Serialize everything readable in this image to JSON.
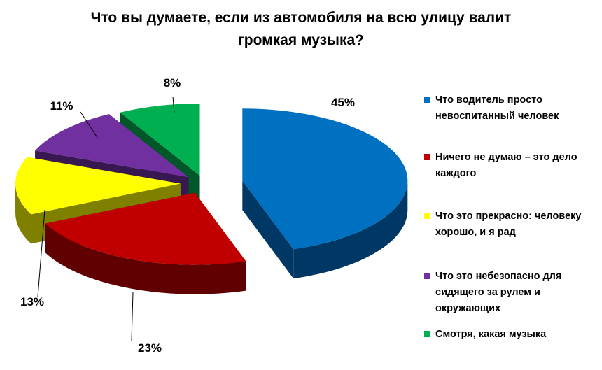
{
  "chart_data": {
    "type": "pie",
    "title": "Что вы думаете, если из автомобиля на всю улицу валит громкая музыка?",
    "slices": [
      {
        "label": "Что водитель просто невоспитанный  человек",
        "value": 45,
        "value_label": "45%",
        "color": "#0070C0",
        "side_color": "#003865"
      },
      {
        "label": "Ничего не думаю – это дело каждого",
        "value": 23,
        "value_label": "23%",
        "color": "#C00000",
        "side_color": "#600000"
      },
      {
        "label": "Что это прекрасно: человеку хорошо, и я рад",
        "value": 13,
        "value_label": "13%",
        "color": "#FFFF00",
        "side_color": "#808000"
      },
      {
        "label": "Что это небезопасно  для сидящего за рулем и окружающих",
        "value": 11,
        "value_label": "11%",
        "color": "#7030A0",
        "side_color": "#381850"
      },
      {
        "label": "Смотря, какая  музыка",
        "value": 8,
        "value_label": "8%",
        "color": "#00B050",
        "side_color": "#005828"
      }
    ],
    "legend_position": "right",
    "style": "3d-exploded"
  }
}
